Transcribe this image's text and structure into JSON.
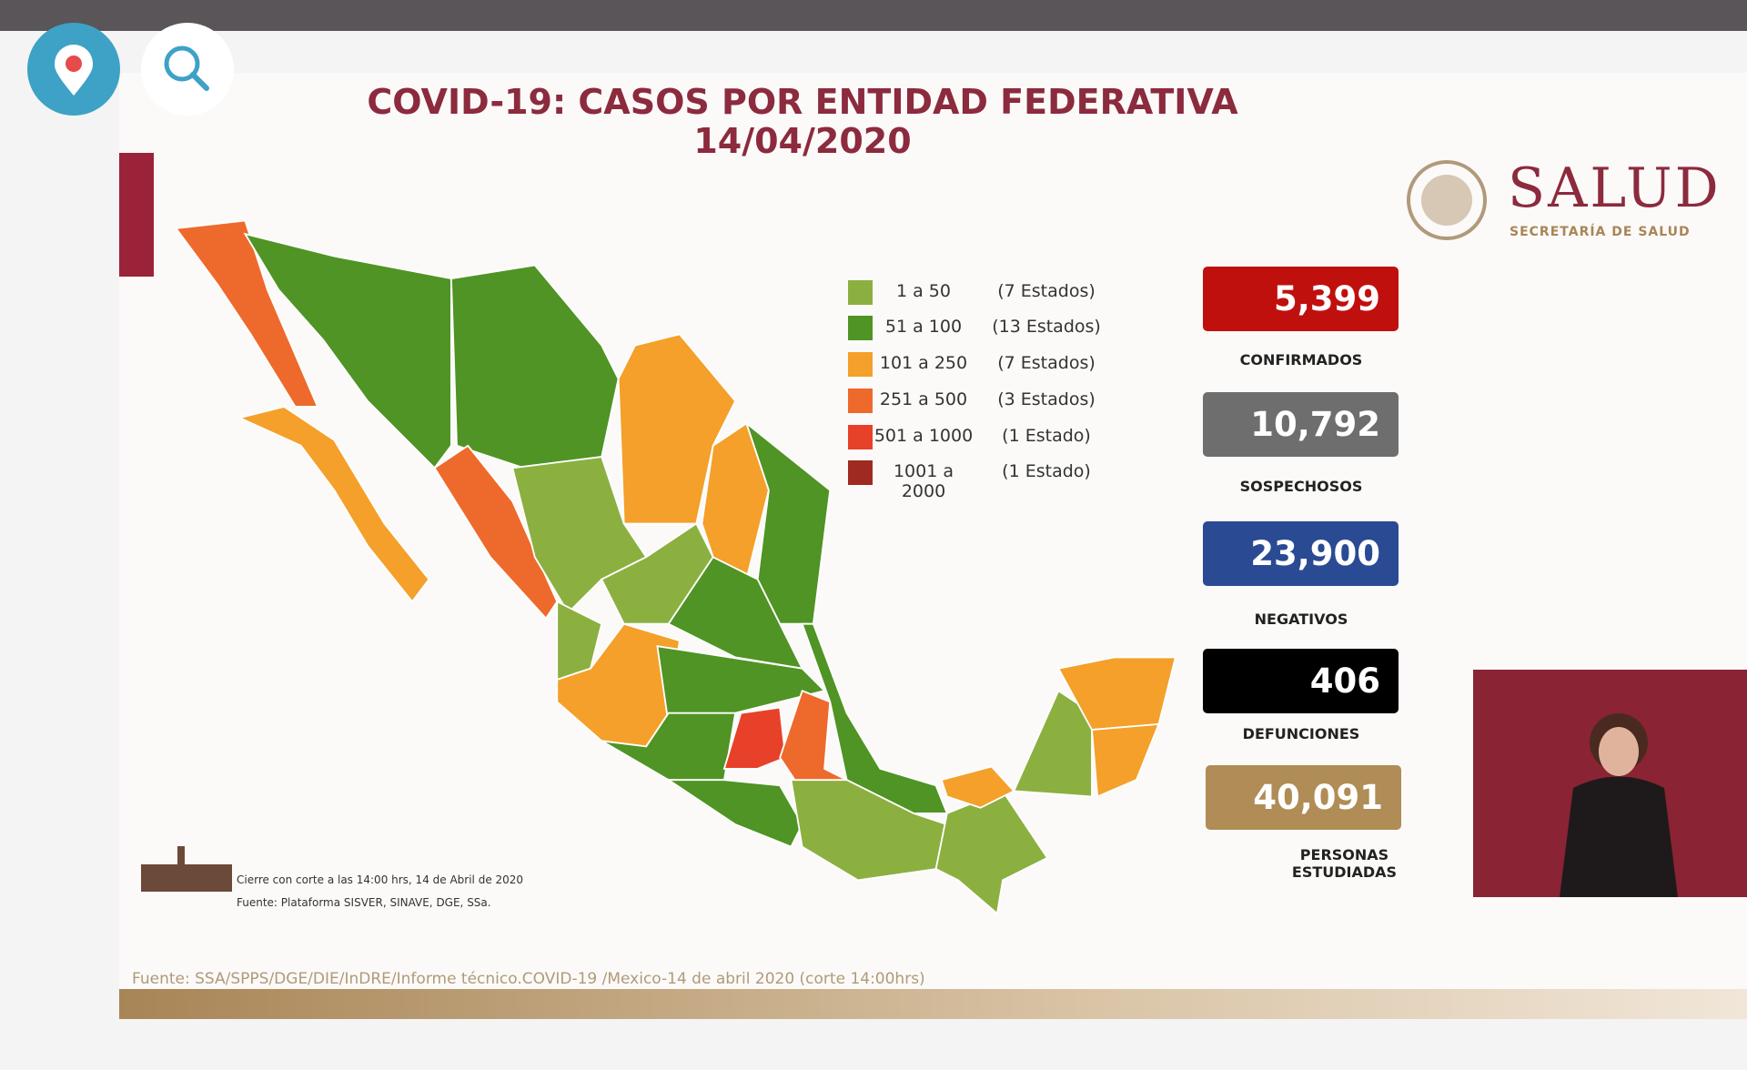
{
  "header": {
    "title": "COVID-19: CASOS POR ENTIDAD FEDERATIVA",
    "date": "14/04/2020"
  },
  "logo": {
    "name": "SALUD",
    "subtitle": "SECRETARÍA DE SALUD"
  },
  "legend": [
    {
      "range": "1 a 50",
      "count": "(7 Estados)",
      "color": "#8bb040"
    },
    {
      "range": "51 a 100",
      "count": "(13 Estados)",
      "color": "#4f9424"
    },
    {
      "range": "101 a 250",
      "count": "(7 Estados)",
      "color": "#f4a02a"
    },
    {
      "range": "251 a 500",
      "count": "(3 Estados)",
      "color": "#ee6a2c"
    },
    {
      "range": "501 a 1000",
      "count": "(1 Estado)",
      "color": "#e8412a"
    },
    {
      "range": "1001 a 2000",
      "count": "(1 Estado)",
      "color": "#9e2a22"
    }
  ],
  "stats": [
    {
      "value": "5,399",
      "label": "CONFIRMADOS",
      "color": "#c0100e"
    },
    {
      "value": "10,792",
      "label": "SOSPECHOSOS",
      "color": "#6e6e6e"
    },
    {
      "value": "23,900",
      "label": "NEGATIVOS",
      "color": "#2a4a94"
    },
    {
      "value": "406",
      "label": "DEFUNCIONES",
      "color": "#000000"
    },
    {
      "value": "40,091",
      "label": "PERSONAS ESTUDIADAS",
      "color": "#b08c56"
    }
  ],
  "notes": [
    "Cierre con corte a las 14:00 hrs, 14 de Abril de 2020",
    "Fuente: Plataforma SISVER, SINAVE, DGE, SSa."
  ],
  "source": "Fuente: SSA/SPPS/DGE/DIE/InDRE/Informe técnico.COVID-19 /Mexico-14 de abril 2020 (corte 14:00hrs)"
}
